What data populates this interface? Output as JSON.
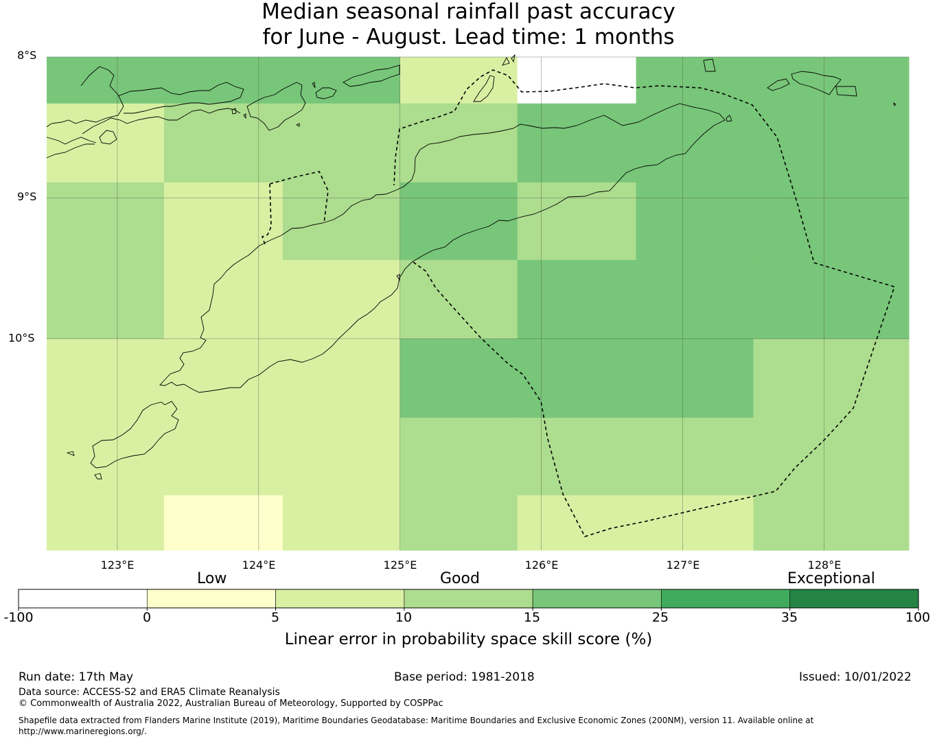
{
  "title": {
    "line1": "Median seasonal rainfall past accuracy",
    "line2": "for June - August. Lead time: 1 months"
  },
  "map": {
    "lon_range": [
      122.5,
      128.6
    ],
    "lat_range": [
      -8.0,
      -11.5
    ],
    "lat_labels": [
      {
        "lat": -8,
        "text": "8°S"
      },
      {
        "lat": -9,
        "text": "9°S"
      },
      {
        "lat": -10,
        "text": "10°S"
      }
    ],
    "lon_labels": [
      {
        "lon": 123,
        "text": "123°E"
      },
      {
        "lon": 124,
        "text": "124°E"
      },
      {
        "lon": 125,
        "text": "125°E"
      },
      {
        "lon": 126,
        "text": "126°E"
      },
      {
        "lon": 127,
        "text": "127°E"
      },
      {
        "lon": 128,
        "text": "128°E"
      }
    ],
    "cell_columns_lon": [
      122.5,
      123.33,
      124.17,
      125.0,
      125.83,
      126.67,
      127.5,
      128.6
    ],
    "cell_rows_lat": [
      -8.0,
      -8.33,
      -8.89,
      -9.44,
      -10.0,
      -10.56,
      -11.11,
      -11.5
    ],
    "skill_grid": [
      [
        20,
        20,
        20,
        7,
        null,
        20,
        20
      ],
      [
        7,
        12,
        12,
        12,
        20,
        20,
        20
      ],
      [
        12,
        7,
        12,
        20,
        12,
        20,
        20
      ],
      [
        12,
        7,
        7,
        12,
        20,
        20,
        20
      ],
      [
        7,
        7,
        7,
        20,
        20,
        20,
        12
      ],
      [
        7,
        7,
        7,
        12,
        12,
        12,
        12
      ],
      [
        7,
        2,
        7,
        12,
        7,
        7,
        12
      ]
    ]
  },
  "colorbar": {
    "categories": [
      {
        "text": "Low",
        "value": 2.5
      },
      {
        "text": "Good",
        "value": 12.5
      },
      {
        "text": "Exceptional",
        "value": 70
      }
    ],
    "bounds": [
      -100,
      0,
      5,
      10,
      15,
      25,
      35,
      100
    ],
    "tick_labels": [
      "-100",
      "0",
      "5",
      "10",
      "15",
      "25",
      "35",
      "100"
    ],
    "colors": [
      "#ffffff",
      "#ffffcc",
      "#d9f0a3",
      "#addd8e",
      "#78c679",
      "#41ab5d",
      "#238443"
    ],
    "label": "Linear error in probability space skill score (%)"
  },
  "footer": {
    "run_date": "Run date: 17th May",
    "base_period": "Base period: 1981-2018",
    "issued": "Issued: 10/01/2022",
    "data_source": "Data source: ACCESS-S2 and ERA5 Climate Reanalysis",
    "copyright": "© Commonwealth of Australia 2022, Australian Bureau of Meteorology, Supported by COSPPac",
    "shapefile_line1": "Shapefile data extracted from Flanders Marine Institute (2019), Maritime Boundaries Geodatabase: Maritime Boundaries and Exclusive Economic Zones (200NM), version 11. Available online at",
    "shapefile_line2": "http://www.marineregions.org/."
  }
}
